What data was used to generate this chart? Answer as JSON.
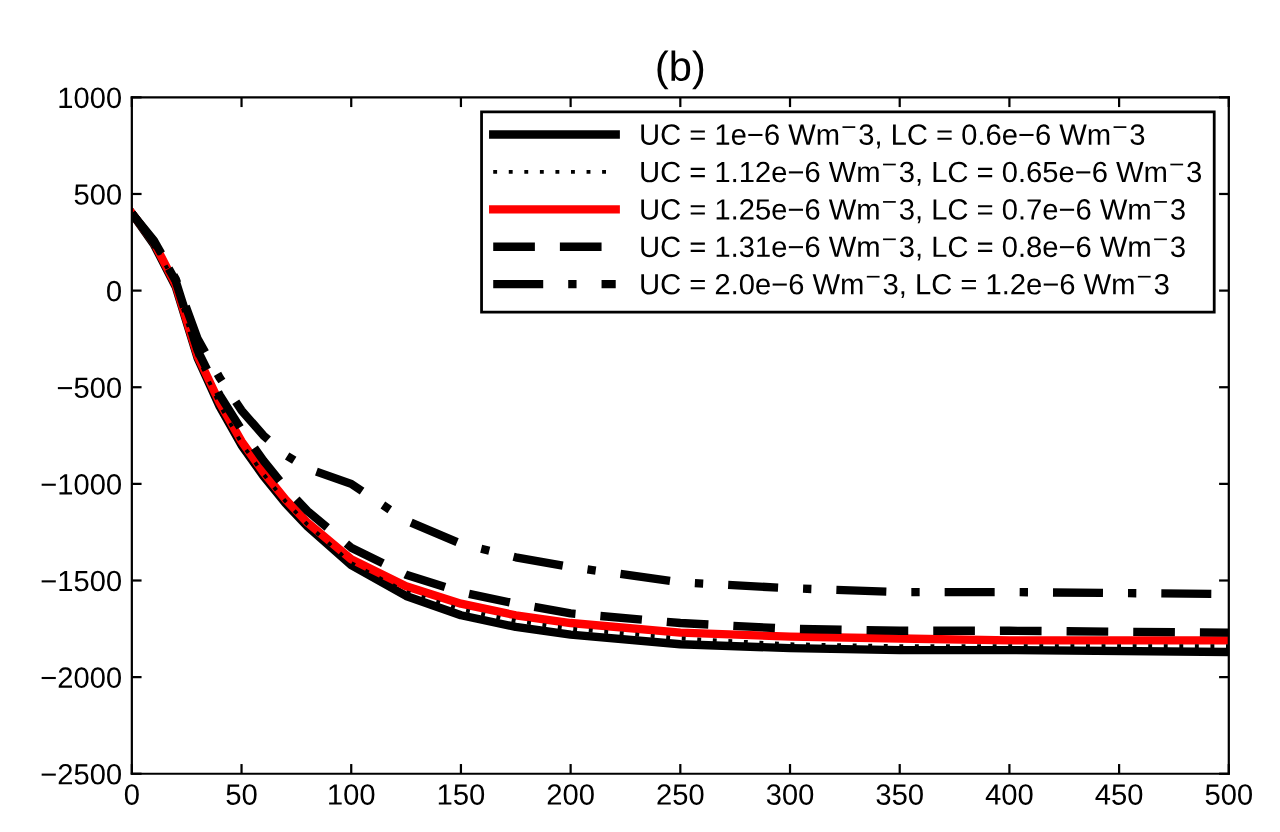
{
  "chart_data": {
    "type": "line",
    "title": "(b)",
    "xlim": [
      0,
      500
    ],
    "xticks": [
      0,
      50,
      100,
      150,
      200,
      250,
      300,
      350,
      400,
      450,
      500
    ],
    "ylim": [
      -2500,
      1000
    ],
    "yticks": [
      -2500,
      -2000,
      -1500,
      -1000,
      -500,
      0,
      500,
      1000
    ],
    "grid": false,
    "legend": "top right",
    "marker": "none",
    "x": [
      0,
      10,
      20,
      30,
      40,
      50,
      60,
      70,
      80,
      100,
      125,
      150,
      175,
      200,
      250,
      300,
      350,
      400,
      500
    ],
    "series": [
      {
        "name": "UC = 1e−6 Wm$^{−}$3, LC = 0.6e−6 Wm$^{−}$3",
        "color": "#000000",
        "line_style": "solid",
        "values": [
          400,
          240,
          20,
          -350,
          -600,
          -800,
          -960,
          -1100,
          -1220,
          -1420,
          -1580,
          -1680,
          -1740,
          -1780,
          -1830,
          -1850,
          -1860,
          -1860,
          -1870
        ]
      },
      {
        "name": "UC = 1.12e−6 Wm$^{−}$3, LC = 0.65e−6 Wm$^{−}$3",
        "color": "#000000",
        "line_style": "dotted",
        "values": [
          400,
          250,
          30,
          -340,
          -590,
          -790,
          -950,
          -1090,
          -1210,
          -1410,
          -1560,
          -1650,
          -1710,
          -1750,
          -1800,
          -1830,
          -1840,
          -1840,
          -1840
        ]
      },
      {
        "name": "UC = 1.25e−6 Wm$^{−}$3, LC = 0.7e−6 Wm$^{−}$3",
        "color": "#ff0000",
        "line_style": "solid",
        "values": [
          400,
          250,
          30,
          -340,
          -580,
          -780,
          -940,
          -1080,
          -1200,
          -1390,
          -1530,
          -1620,
          -1680,
          -1720,
          -1770,
          -1790,
          -1800,
          -1810,
          -1810
        ]
      },
      {
        "name": "UC = 1.31e−6 Wm$^{−}$3, LC = 0.8e−6 Wm$^{−}$3",
        "color": "#000000",
        "line_style": "dashed",
        "values": [
          400,
          250,
          50,
          -310,
          -540,
          -720,
          -880,
          -1020,
          -1140,
          -1330,
          -1470,
          -1560,
          -1620,
          -1670,
          -1720,
          -1750,
          -1760,
          -1760,
          -1770
        ]
      },
      {
        "name": "UC = 2.0e−6 Wm$^{−}$3, LC = 1.2e−6 Wm$^{−}$3",
        "color": "#000000",
        "line_style": "dashdot",
        "values": [
          400,
          260,
          60,
          -250,
          -450,
          -620,
          -750,
          -850,
          -920,
          -1000,
          -1190,
          -1310,
          -1380,
          -1430,
          -1510,
          -1540,
          -1560,
          -1560,
          -1570
        ]
      }
    ]
  }
}
